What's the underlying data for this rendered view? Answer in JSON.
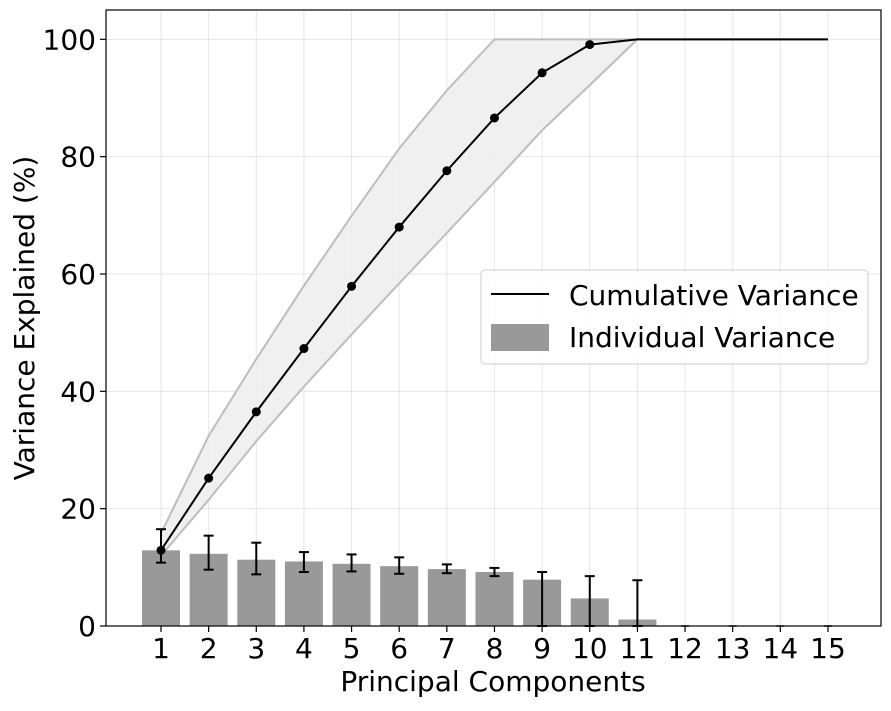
{
  "chart_data": {
    "type": "bar",
    "xlabel": "Principal Components",
    "ylabel": "Variance Explained (%)",
    "categories": [
      "1",
      "2",
      "3",
      "4",
      "5",
      "6",
      "7",
      "8",
      "9",
      "10",
      "11",
      "12",
      "13",
      "14",
      "15"
    ],
    "ylim": [
      0,
      105
    ],
    "yticks": [
      0,
      20,
      40,
      60,
      80,
      100
    ],
    "grid": true,
    "legend_position": "center-right",
    "series": [
      {
        "name": "Individual Variance",
        "kind": "bar",
        "color": "#999999",
        "values": [
          12.9,
          12.3,
          11.3,
          11.0,
          10.6,
          10.2,
          9.7,
          9.2,
          7.9,
          4.7,
          1.1,
          0,
          0,
          0,
          0
        ],
        "error_low": [
          10.8,
          9.6,
          8.8,
          9.2,
          9.3,
          8.9,
          9.0,
          8.5,
          0,
          0,
          0,
          0,
          0,
          0,
          0
        ],
        "error_high": [
          16.5,
          15.4,
          14.2,
          12.6,
          12.2,
          11.7,
          10.5,
          9.9,
          9.2,
          8.5,
          7.8,
          0,
          0,
          0,
          0
        ]
      },
      {
        "name": "Cumulative Variance",
        "kind": "line",
        "color": "#000000",
        "values": [
          12.9,
          25.2,
          36.5,
          47.3,
          57.9,
          68.0,
          77.6,
          86.6,
          94.3,
          99.1,
          100,
          100,
          100,
          100,
          100
        ],
        "marker_count": 10,
        "band_low": [
          12.0,
          21.5,
          31.5,
          40.8,
          49.7,
          58.4,
          67.0,
          75.7,
          84.5,
          92.2,
          100,
          100,
          100,
          100,
          100
        ],
        "band_high": [
          15.8,
          32.4,
          45.5,
          58.0,
          69.9,
          81.4,
          91.3,
          100,
          100,
          100,
          100,
          100,
          100,
          100,
          100
        ],
        "band_color": "#eeeeee",
        "band_edge_color": "#bdbdbd"
      }
    ],
    "legend": {
      "entries": [
        "Cumulative Variance",
        "Individual Variance"
      ]
    }
  }
}
